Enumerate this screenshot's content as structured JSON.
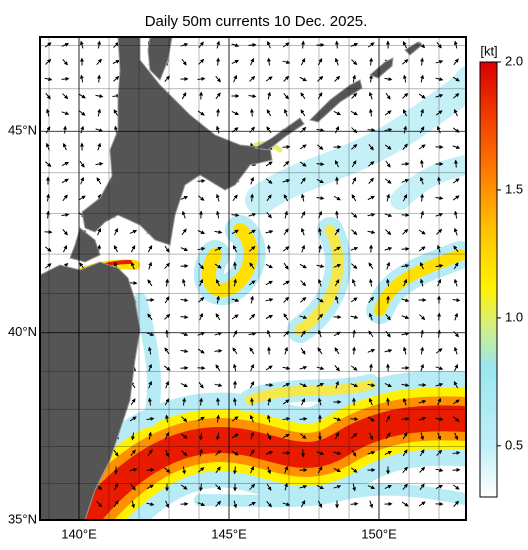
{
  "title": "Daily 50m currents 10 Dec. 2025.",
  "map": {
    "lon_range": [
      138.7,
      152.9
    ],
    "lat_range": [
      35,
      47.2
    ],
    "lon_ticks": [
      {
        "value": 140,
        "label": "140°E"
      },
      {
        "value": 145,
        "label": "145°E"
      },
      {
        "value": 150,
        "label": "150°E"
      }
    ],
    "lat_ticks": [
      {
        "value": 35,
        "label": "35°N"
      },
      {
        "value": 40,
        "label": "40°N"
      },
      {
        "value": 45,
        "label": "45°N"
      }
    ]
  },
  "colorbar": {
    "unit": "[kt]",
    "range": [
      0.3,
      2.0
    ],
    "ticks": [
      {
        "value": 0.5,
        "label": "0.5"
      },
      {
        "value": 1.0,
        "label": "1.0"
      },
      {
        "value": 1.5,
        "label": "1.5"
      },
      {
        "value": 2.0,
        "label": "2.0"
      }
    ]
  }
}
